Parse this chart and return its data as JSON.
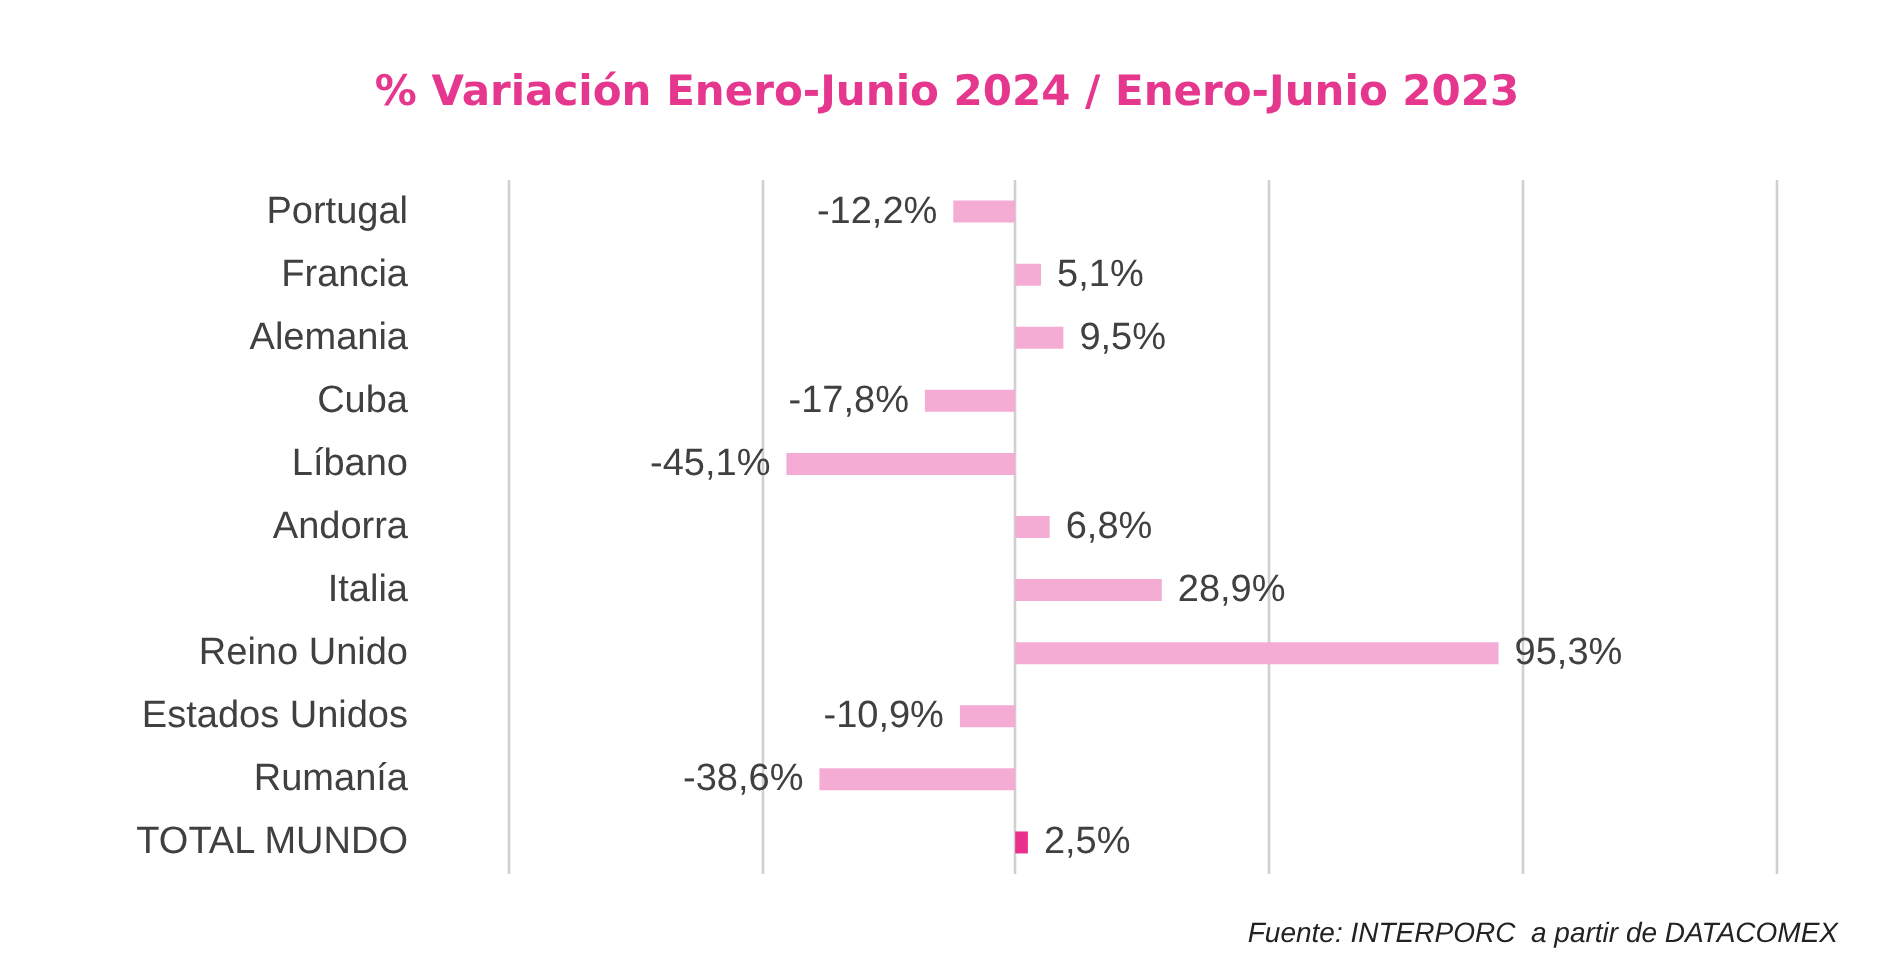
{
  "chart_data": {
    "type": "bar",
    "orientation": "horizontal",
    "title": "% Variación Enero-Junio 2024 / Enero-Junio 2023",
    "categories": [
      "Portugal",
      "Francia",
      "Alemania",
      "Cuba",
      "Líbano",
      "Andorra",
      "Italia",
      "Reino Unido",
      "Estados Unidos",
      "Rumanía",
      "TOTAL MUNDO"
    ],
    "values": [
      -12.2,
      5.1,
      9.5,
      -17.8,
      -45.1,
      6.8,
      28.9,
      95.3,
      -10.9,
      -38.6,
      2.5
    ],
    "value_labels": [
      "-12,2%",
      "5,1%",
      "9,5%",
      "-17,8%",
      "-45,1%",
      "6,8%",
      "28,9%",
      "95,3%",
      "-10,9%",
      "-38,6%",
      "2,5%"
    ],
    "colors": [
      "#f4acd4",
      "#f4acd4",
      "#f4acd4",
      "#f4acd4",
      "#f4acd4",
      "#f4acd4",
      "#f4acd4",
      "#f4acd4",
      "#f4acd4",
      "#f4acd4",
      "#e8308c"
    ],
    "xlim": [
      -100,
      150
    ],
    "xticks": [
      {
        "value": -100,
        "label": null
      },
      {
        "value": -50,
        "label": null
      },
      {
        "value": 0,
        "label": null
      },
      {
        "value": 50,
        "label": null
      },
      {
        "value": 100,
        "label": null
      },
      {
        "value": 150,
        "label": null
      }
    ],
    "tick_labels": "y",
    "grid": "x",
    "annotations": [
      "Fuente: INTERPORC  a partir de DATACOMEX"
    ]
  }
}
